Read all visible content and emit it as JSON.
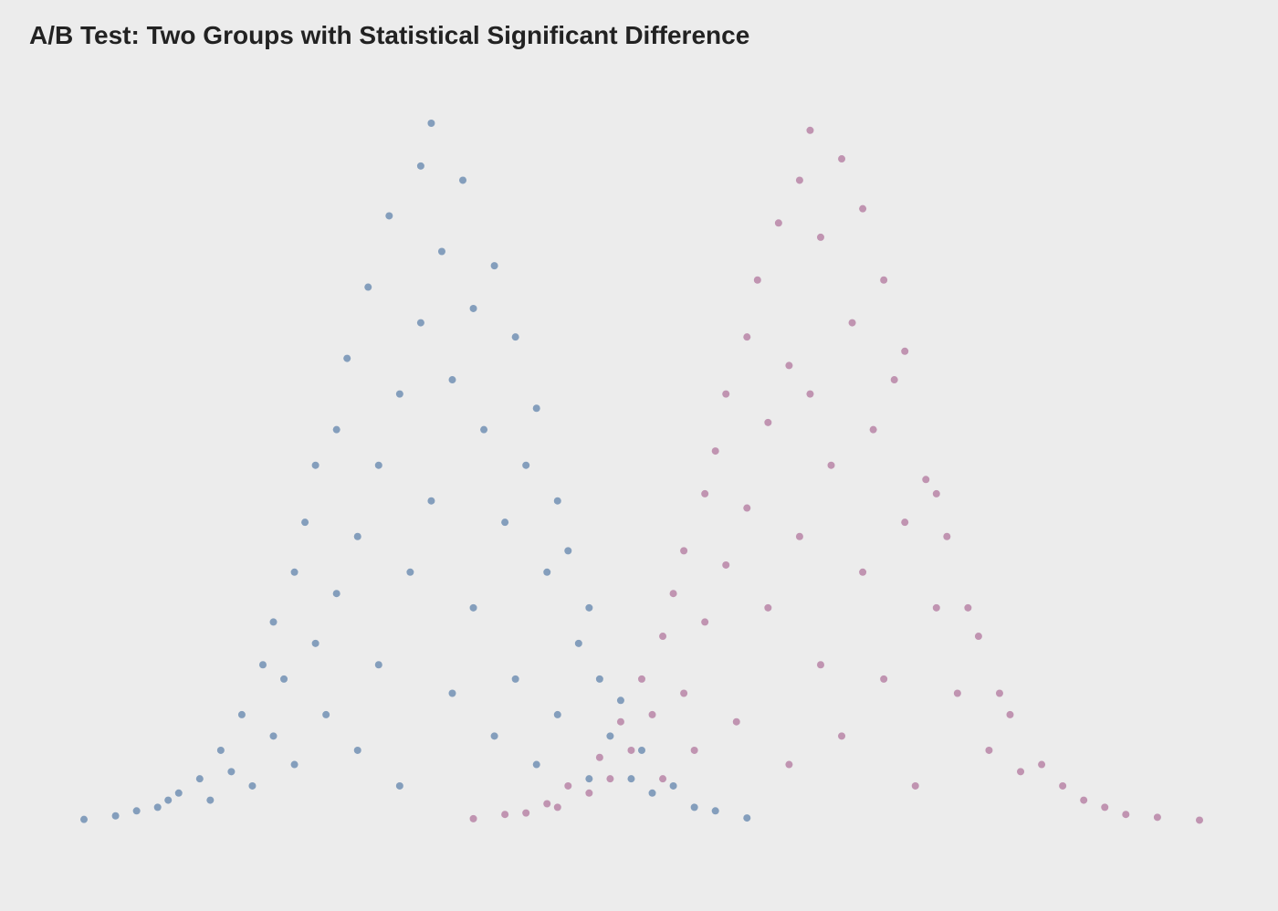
{
  "chart_data": {
    "type": "scatter",
    "title": "A/B Test: Two Groups with Statistical Significant Difference",
    "series": [
      {
        "color": "#3f6a9d",
        "x": [
          -3.3,
          -3.0,
          -2.8,
          -2.6,
          -2.5,
          -2.4,
          -2.2,
          -2.1,
          -2.0,
          -1.9,
          -1.8,
          -1.7,
          -1.6,
          -1.5,
          -1.5,
          -1.4,
          -1.3,
          -1.3,
          -1.2,
          -1.1,
          -1.1,
          -1.0,
          -0.9,
          -0.9,
          -0.8,
          -0.7,
          -0.7,
          -0.6,
          -0.5,
          -0.5,
          -0.4,
          -0.3,
          -0.3,
          -0.2,
          -0.1,
          -0.1,
          0.0,
          0.0,
          0.1,
          0.2,
          0.2,
          0.3,
          0.4,
          0.4,
          0.5,
          0.6,
          0.6,
          0.7,
          0.8,
          0.8,
          0.9,
          1.0,
          1.0,
          1.1,
          1.2,
          1.2,
          1.3,
          1.4,
          1.5,
          1.5,
          1.6,
          1.7,
          1.8,
          1.9,
          2.0,
          2.1,
          2.3,
          2.5,
          2.7,
          3.0
        ],
        "values": [
          0.003,
          0.008,
          0.015,
          0.02,
          0.03,
          0.04,
          0.06,
          0.03,
          0.1,
          0.07,
          0.15,
          0.05,
          0.22,
          0.12,
          0.28,
          0.2,
          0.35,
          0.08,
          0.42,
          0.25,
          0.5,
          0.15,
          0.55,
          0.32,
          0.65,
          0.4,
          0.1,
          0.75,
          0.5,
          0.22,
          0.85,
          0.6,
          0.05,
          0.35,
          0.92,
          0.7,
          0.98,
          0.45,
          0.8,
          0.18,
          0.62,
          0.9,
          0.3,
          0.72,
          0.55,
          0.12,
          0.78,
          0.42,
          0.68,
          0.2,
          0.5,
          0.58,
          0.08,
          0.35,
          0.45,
          0.15,
          0.38,
          0.25,
          0.3,
          0.06,
          0.2,
          0.12,
          0.17,
          0.06,
          0.1,
          0.04,
          0.05,
          0.02,
          0.015,
          0.005
        ]
      },
      {
        "color": "#a35a8b",
        "x": [
          0.4,
          0.7,
          0.9,
          1.1,
          1.2,
          1.3,
          1.5,
          1.6,
          1.7,
          1.8,
          1.9,
          2.0,
          2.1,
          2.2,
          2.2,
          2.3,
          2.4,
          2.4,
          2.5,
          2.6,
          2.6,
          2.7,
          2.8,
          2.8,
          2.9,
          3.0,
          3.0,
          3.1,
          3.2,
          3.2,
          3.3,
          3.4,
          3.4,
          3.5,
          3.5,
          3.6,
          3.6,
          3.7,
          3.7,
          3.8,
          3.9,
          3.9,
          4.0,
          4.1,
          4.1,
          4.2,
          4.3,
          4.3,
          4.4,
          4.5,
          4.5,
          4.6,
          4.7,
          4.8,
          4.8,
          4.9,
          5.0,
          5.1,
          5.2,
          5.3,
          5.4,
          5.5,
          5.6,
          5.8,
          6.0,
          6.2,
          6.4,
          6.6,
          6.9,
          7.3
        ],
        "values": [
          0.004,
          0.01,
          0.012,
          0.025,
          0.02,
          0.05,
          0.04,
          0.09,
          0.06,
          0.14,
          0.1,
          0.2,
          0.15,
          0.26,
          0.06,
          0.32,
          0.18,
          0.38,
          0.1,
          0.46,
          0.28,
          0.52,
          0.36,
          0.6,
          0.14,
          0.68,
          0.44,
          0.76,
          0.3,
          0.56,
          0.84,
          0.64,
          0.08,
          0.9,
          0.4,
          0.97,
          0.6,
          0.22,
          0.82,
          0.5,
          0.93,
          0.12,
          0.7,
          0.35,
          0.86,
          0.55,
          0.76,
          0.2,
          0.62,
          0.42,
          0.66,
          0.05,
          0.48,
          0.3,
          0.46,
          0.4,
          0.18,
          0.3,
          0.26,
          0.1,
          0.18,
          0.15,
          0.07,
          0.08,
          0.05,
          0.03,
          0.02,
          0.01,
          0.006,
          0.002
        ]
      }
    ]
  }
}
